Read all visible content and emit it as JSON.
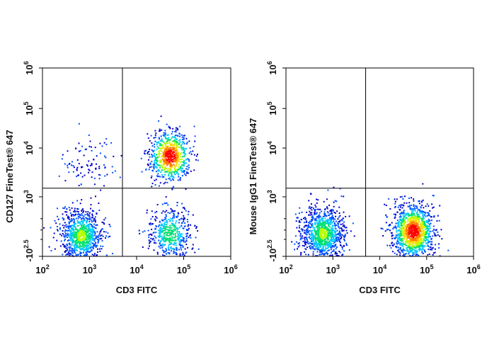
{
  "chart_data": [
    {
      "type": "scatter",
      "panel": "left",
      "xlabel": "CD3 FITC",
      "ylabel": "CD127  FineTest® 647",
      "x_scale": "log",
      "y_scale": "biexponential",
      "xlim": [
        100,
        1000000
      ],
      "ylim": [
        -316,
        1000000
      ],
      "x_ticks": [
        {
          "base": "10",
          "exp": "2"
        },
        {
          "base": "10",
          "exp": "3"
        },
        {
          "base": "10",
          "exp": "4"
        },
        {
          "base": "10",
          "exp": "5"
        },
        {
          "base": "10",
          "exp": "6"
        }
      ],
      "y_ticks": [
        {
          "base": "-10",
          "exp": "2.5"
        },
        {
          "base": "10",
          "exp": "3"
        },
        {
          "base": "10",
          "exp": "4"
        },
        {
          "base": "10",
          "exp": "5"
        },
        {
          "base": "10",
          "exp": "6"
        }
      ],
      "gate": {
        "x": 5000,
        "y": 1500
      },
      "populations": [
        {
          "x": 650,
          "y": 150,
          "relative_size": 0.38,
          "max_density": 0.55
        },
        {
          "x": 50000,
          "y": 7000,
          "relative_size": 0.3,
          "max_density": 1.0
        },
        {
          "x": 50000,
          "y": 200,
          "relative_size": 0.2,
          "max_density": 0.5
        },
        {
          "x": 900,
          "y": 5000,
          "relative_size": 0.04,
          "max_density": 0.12
        }
      ]
    },
    {
      "type": "scatter",
      "panel": "right",
      "xlabel": "CD3 FITC",
      "ylabel": "Mouse IgG1  FineTest® 647",
      "x_scale": "log",
      "y_scale": "biexponential",
      "xlim": [
        100,
        1000000
      ],
      "ylim": [
        -316,
        1000000
      ],
      "x_ticks": [
        {
          "base": "10",
          "exp": "2"
        },
        {
          "base": "10",
          "exp": "3"
        },
        {
          "base": "10",
          "exp": "4"
        },
        {
          "base": "10",
          "exp": "5"
        },
        {
          "base": "10",
          "exp": "6"
        }
      ],
      "y_ticks": [
        {
          "base": "-10",
          "exp": "2.5"
        },
        {
          "base": "10",
          "exp": "3"
        },
        {
          "base": "10",
          "exp": "4"
        },
        {
          "base": "10",
          "exp": "5"
        },
        {
          "base": "10",
          "exp": "6"
        }
      ],
      "gate": {
        "x": 5000,
        "y": 1500
      },
      "populations": [
        {
          "x": 600,
          "y": 200,
          "relative_size": 0.42,
          "max_density": 0.55
        },
        {
          "x": 50000,
          "y": 250,
          "relative_size": 0.5,
          "max_density": 1.0
        }
      ]
    }
  ],
  "colors": {
    "density_scale": [
      "#0000c8",
      "#0050ff",
      "#00c8ff",
      "#00e070",
      "#b8ff00",
      "#ffd800",
      "#ff7a00",
      "#ff0000"
    ],
    "axis": "#000000",
    "gate_line": "#000000"
  }
}
